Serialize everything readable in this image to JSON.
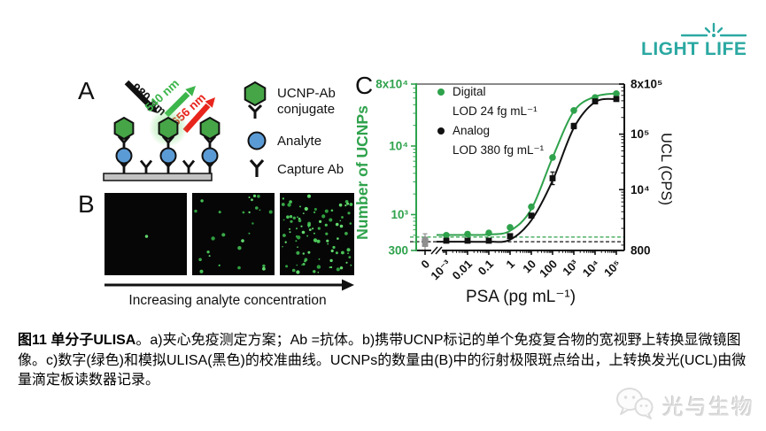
{
  "page": {
    "background": "#ffffff"
  },
  "brand": {
    "logo_text": "LIGHT LIFE",
    "color": "#2BA8A2"
  },
  "figure": {
    "panel_a": {
      "label": "A",
      "arrows": {
        "excitation": {
          "label": "980 nm",
          "color": "#111111"
        },
        "emission_green": {
          "label": "540 nm",
          "color": "#3CB54A"
        },
        "emission_red": {
          "label": "656 nm",
          "color": "#E8251D"
        }
      },
      "legend": [
        {
          "icon": "ucnp-ab-conjugate-icon",
          "label_line1": "UCNP-Ab",
          "label_line2": "conjugate"
        },
        {
          "icon": "analyte-icon",
          "label": "Analyte"
        },
        {
          "icon": "capture-ab-icon",
          "label": "Capture Ab"
        }
      ],
      "colors": {
        "ucnp": "#46A546",
        "analyte": "#5B9BD5",
        "surface": "#C2C2C2"
      }
    },
    "panel_b": {
      "label": "B",
      "dot_counts": [
        1,
        26,
        92
      ],
      "caption_arrow_label": "Increasing analyte concentration"
    },
    "panel_c": {
      "label": "C"
    }
  },
  "chart_data": {
    "type": "line",
    "title": "",
    "xlabel": "PSA (pg mL⁻¹)",
    "ylabel_left": "Number of UCNPs",
    "ylabel_right": "UCL (CPS)",
    "x_categories": [
      "0",
      "10⁻³",
      "0.01",
      "0.1",
      "1",
      "10",
      "100",
      "10³",
      "10⁴",
      "10⁵"
    ],
    "x_values_pg_ml": [
      0,
      0.001,
      0.01,
      0.1,
      1,
      10,
      100,
      1000,
      10000,
      100000
    ],
    "x_axis_break_after": "0",
    "grid": false,
    "legend_position": "top-left",
    "zero_point_color": "#8f8f8f",
    "curve_start_index": 1,
    "left_axis": {
      "scale": "log",
      "min": 300,
      "max": 80000,
      "color": "#2FA24C",
      "ticks": [
        "8x10⁴",
        "10⁴",
        "10³",
        "300"
      ],
      "tick_values": [
        80000,
        10000,
        1000,
        300
      ]
    },
    "right_axis": {
      "scale": "log",
      "min": 800,
      "max": 800000,
      "color": "#111111",
      "ticks": [
        "8x10⁵",
        "10⁵",
        "10⁴",
        "800"
      ],
      "tick_values": [
        800000,
        100000,
        10000,
        800
      ]
    },
    "series": [
      {
        "name": "Digital",
        "lod_label": "LOD 24 fg mL⁻¹",
        "color": "#2FA24C",
        "marker": "circle",
        "axis": "left",
        "values": [
          430,
          500,
          520,
          540,
          650,
          1300,
          6800,
          33000,
          51000,
          58000
        ],
        "err_frac": [
          0.22,
          0,
          0,
          0,
          0,
          0,
          0,
          0,
          0,
          0
        ],
        "curve": [
          505,
          505,
          512,
          580,
          1200,
          6800,
          32000,
          52500,
          58500
        ],
        "lod_line_value": 470
      },
      {
        "name": "Analog",
        "lod_label": "LOD 380 fg mL⁻¹",
        "color": "#111111",
        "marker": "square",
        "axis": "right",
        "values": [
          1050,
          1200,
          1200,
          1200,
          1450,
          3400,
          16000,
          140000,
          390000,
          430000
        ],
        "err_frac": [
          0.3,
          0,
          0,
          0,
          0,
          0,
          0.3,
          0.12,
          0,
          0
        ],
        "curve": [
          1150,
          1150,
          1150,
          1250,
          2800,
          14500,
          130000,
          380000,
          430000
        ],
        "lod_line_value": 1150
      }
    ]
  },
  "caption": {
    "bold": "图11 单分子ULISA",
    "rest": "。a)夹心免疫测定方案；Ab =抗体。b)携带UCNP标记的单个免疫复合物的宽视野上转换显微镜图像。c)数字(绿色)和模拟ULISA(黑色)的校准曲线。UCNPs的数量由(B)中的衍射极限斑点给出，上转换发光(UCL)由微量滴定板读数器记录。"
  },
  "watermark": {
    "text": "光与生物"
  }
}
